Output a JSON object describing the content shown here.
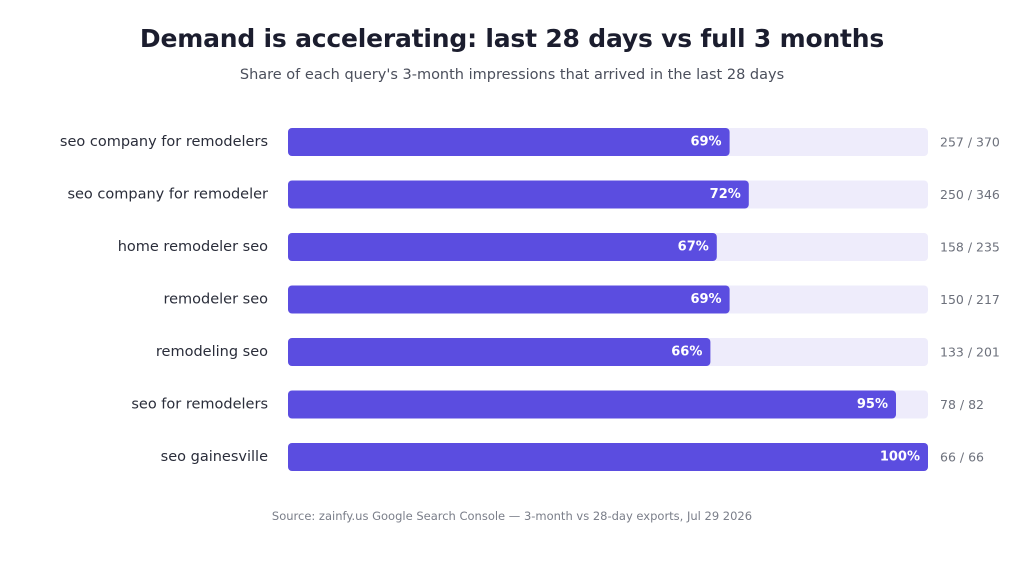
{
  "header": {
    "title": "Demand is accelerating: last 28 days vs full 3 months",
    "subtitle": "Share of each query's 3-month impressions that arrived in the last 28 days"
  },
  "footer": {
    "source": "Source: zainfy.us Google Search Console — 3-month vs 28-day exports, Jul 29 2026"
  },
  "colors": {
    "bar": "#5b4de0",
    "track": "#eeecfb"
  },
  "chart_data": {
    "type": "bar",
    "orientation": "horizontal",
    "title": "Demand is accelerating: last 28 days vs full 3 months",
    "subtitle": "Share of each query's 3-month impressions that arrived in the last 28 days",
    "xlim": [
      0,
      100
    ],
    "grid": false,
    "categories": [
      "seo company for remodelers",
      "seo company for remodeler",
      "home remodeler seo",
      "remodeler seo",
      "remodeling seo",
      "seo for remodelers",
      "seo gainesville"
    ],
    "values": [
      69,
      72,
      67,
      69,
      66,
      95,
      100
    ],
    "value_labels": [
      "69%",
      "72%",
      "67%",
      "69%",
      "66%",
      "95%",
      "100%"
    ],
    "last_28_days": [
      257,
      250,
      158,
      150,
      133,
      78,
      66
    ],
    "three_months": [
      370,
      346,
      235,
      217,
      201,
      82,
      66
    ],
    "count_labels": [
      "257 / 370",
      "250 / 346",
      "158 / 235",
      "150 / 217",
      "133 / 201",
      "78 / 82",
      "66 / 66"
    ]
  }
}
